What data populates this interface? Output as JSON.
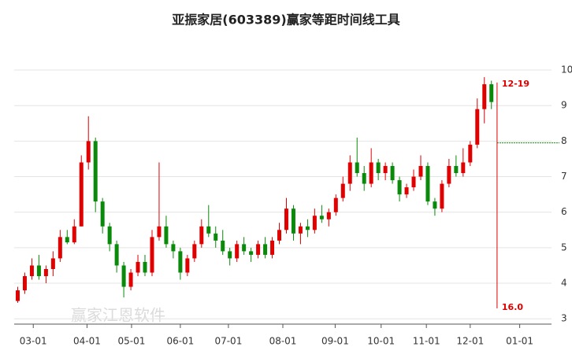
{
  "chart_data": {
    "type": "candlestick",
    "title": "亚振家居(603389)赢家等距时间线工具",
    "up_color": "#e00000",
    "down_color": "#0a8a0a",
    "candles": [
      [
        3.5,
        3.9,
        3.45,
        3.8
      ],
      [
        3.8,
        4.3,
        3.7,
        4.2
      ],
      [
        4.2,
        4.7,
        4.1,
        4.5
      ],
      [
        4.5,
        4.8,
        4.1,
        4.2
      ],
      [
        4.2,
        4.5,
        4.0,
        4.4
      ],
      [
        4.4,
        4.9,
        4.2,
        4.7
      ],
      [
        4.7,
        5.5,
        4.6,
        5.3
      ],
      [
        5.3,
        5.5,
        5.1,
        5.15
      ],
      [
        5.15,
        5.8,
        5.1,
        5.6
      ],
      [
        5.6,
        7.6,
        5.6,
        7.4
      ],
      [
        7.4,
        8.7,
        7.2,
        8.0
      ],
      [
        8.0,
        8.1,
        6.0,
        6.3
      ],
      [
        6.3,
        6.4,
        5.4,
        5.6
      ],
      [
        5.6,
        5.7,
        4.9,
        5.1
      ],
      [
        5.1,
        5.2,
        4.3,
        4.5
      ],
      [
        4.5,
        4.6,
        3.6,
        3.9
      ],
      [
        3.9,
        4.4,
        3.8,
        4.3
      ],
      [
        4.3,
        4.8,
        4.2,
        4.6
      ],
      [
        4.6,
        4.8,
        4.2,
        4.3
      ],
      [
        4.3,
        5.5,
        4.2,
        5.3
      ],
      [
        5.3,
        7.4,
        5.2,
        5.6
      ],
      [
        5.6,
        5.9,
        5.0,
        5.1
      ],
      [
        5.1,
        5.2,
        4.7,
        4.9
      ],
      [
        4.9,
        5.0,
        4.1,
        4.3
      ],
      [
        4.3,
        4.8,
        4.2,
        4.7
      ],
      [
        4.7,
        5.2,
        4.6,
        5.1
      ],
      [
        5.1,
        5.8,
        5.0,
        5.6
      ],
      [
        5.6,
        6.2,
        5.3,
        5.4
      ],
      [
        5.4,
        5.6,
        5.0,
        5.2
      ],
      [
        5.2,
        5.5,
        4.8,
        4.9
      ],
      [
        4.9,
        5.0,
        4.5,
        4.7
      ],
      [
        4.7,
        5.2,
        4.6,
        5.1
      ],
      [
        5.1,
        5.3,
        4.8,
        4.9
      ],
      [
        4.9,
        5.0,
        4.6,
        4.8
      ],
      [
        4.8,
        5.2,
        4.7,
        5.1
      ],
      [
        5.1,
        5.3,
        4.7,
        4.8
      ],
      [
        4.8,
        5.3,
        4.7,
        5.2
      ],
      [
        5.2,
        5.7,
        5.1,
        5.5
      ],
      [
        5.5,
        6.4,
        5.4,
        6.1
      ],
      [
        6.1,
        6.2,
        5.2,
        5.4
      ],
      [
        5.4,
        5.7,
        5.1,
        5.6
      ],
      [
        5.6,
        5.8,
        5.3,
        5.5
      ],
      [
        5.5,
        6.1,
        5.4,
        5.9
      ],
      [
        5.9,
        6.2,
        5.7,
        5.8
      ],
      [
        5.8,
        6.1,
        5.6,
        6.0
      ],
      [
        6.0,
        6.5,
        5.9,
        6.4
      ],
      [
        6.4,
        7.0,
        6.3,
        6.8
      ],
      [
        6.8,
        7.6,
        6.6,
        7.4
      ],
      [
        7.4,
        8.1,
        7.0,
        7.1
      ],
      [
        7.1,
        7.3,
        6.6,
        6.8
      ],
      [
        6.8,
        7.8,
        6.7,
        7.4
      ],
      [
        7.4,
        7.5,
        6.9,
        7.1
      ],
      [
        7.1,
        7.4,
        6.9,
        7.3
      ],
      [
        7.3,
        7.4,
        6.8,
        6.9
      ],
      [
        6.9,
        7.0,
        6.3,
        6.5
      ],
      [
        6.5,
        6.8,
        6.4,
        6.7
      ],
      [
        6.7,
        7.2,
        6.6,
        7.0
      ],
      [
        7.0,
        7.6,
        6.9,
        7.3
      ],
      [
        7.3,
        7.4,
        6.2,
        6.3
      ],
      [
        6.3,
        6.4,
        5.9,
        6.1
      ],
      [
        6.1,
        6.9,
        6.0,
        6.8
      ],
      [
        6.8,
        7.5,
        6.7,
        7.3
      ],
      [
        7.3,
        7.6,
        7.0,
        7.1
      ],
      [
        7.1,
        7.8,
        7.0,
        7.4
      ],
      [
        7.4,
        8.0,
        7.3,
        7.9
      ],
      [
        7.9,
        9.2,
        7.8,
        8.9
      ],
      [
        8.9,
        9.8,
        8.5,
        9.6
      ],
      [
        9.6,
        9.7,
        8.9,
        9.1
      ]
    ],
    "xlim": [
      0,
      76
    ],
    "xticks": [
      {
        "value": 2.7,
        "label": "03-01"
      },
      {
        "value": 10.3,
        "label": "04-01"
      },
      {
        "value": 16.6,
        "label": "05-01"
      },
      {
        "value": 23.5,
        "label": "06-01"
      },
      {
        "value": 30.3,
        "label": "07-01"
      },
      {
        "value": 38,
        "label": "08-01"
      },
      {
        "value": 45.4,
        "label": "09-01"
      },
      {
        "value": 51.9,
        "label": "10-01"
      },
      {
        "value": 58.3,
        "label": "11-01"
      },
      {
        "value": 64.5,
        "label": "12-01"
      },
      {
        "value": 71.5,
        "label": "01-01"
      }
    ],
    "ylim": [
      2.85,
      10.2
    ],
    "yticks": [
      3,
      4,
      5,
      6,
      7,
      8,
      9,
      10
    ],
    "grid": true,
    "ref_line": 7.95,
    "ref_color": "#0a8a0a",
    "marker_label": "12-19",
    "marker_count": "16.0",
    "marker_color": "#e00000",
    "watermark": "赢家江恩软件"
  }
}
